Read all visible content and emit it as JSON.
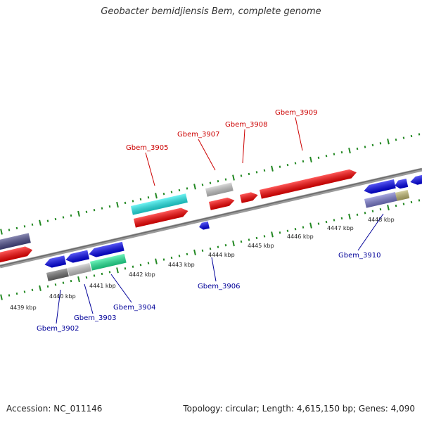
{
  "title": "Geobacter bemidjiensis Bem, complete genome",
  "footer": {
    "accession": "Accession: NC_011146",
    "summary": "Topology: circular; Length: 4,615,150 bp; Genes: 4,090"
  },
  "colors": {
    "forward_red": "#ff0000",
    "reverse_blue": "#0000ee",
    "cyan": "#22eeee",
    "grey": "#c8c8c8",
    "dark_grey": "#707070",
    "teal": "#22ee99",
    "slate": "#4a4a8a",
    "lavender": "#7b7bd0",
    "olive": "#c0b870",
    "backbone": "#808080",
    "ruler_green": "#228822",
    "label_red": "#cc0000",
    "label_blue": "#000099"
  },
  "kbp_ticks": [
    "4439 kbp",
    "4440 kbp",
    "4441 kbp",
    "4442 kbp",
    "4443 kbp",
    "4444 kbp",
    "4445 kbp",
    "4446 kbp",
    "4447 kbp",
    "4448 kbp"
  ],
  "labels": [
    {
      "id": "Gbem_3905",
      "text": "Gbem_3905",
      "color": "#cc0000"
    },
    {
      "id": "Gbem_3907",
      "text": "Gbem_3907",
      "color": "#cc0000"
    },
    {
      "id": "Gbem_3908",
      "text": "Gbem_3908",
      "color": "#cc0000"
    },
    {
      "id": "Gbem_3909",
      "text": "Gbem_3909",
      "color": "#cc0000"
    },
    {
      "id": "Gbem_3902",
      "text": "Gbem_3902",
      "color": "#000099"
    },
    {
      "id": "Gbem_3903",
      "text": "Gbem_3903",
      "color": "#000099"
    },
    {
      "id": "Gbem_3904",
      "text": "Gbem_3904",
      "color": "#000099"
    },
    {
      "id": "Gbem_3906",
      "text": "Gbem_3906",
      "color": "#000099"
    },
    {
      "id": "Gbem_3910",
      "text": "Gbem_3910",
      "color": "#000099"
    }
  ]
}
